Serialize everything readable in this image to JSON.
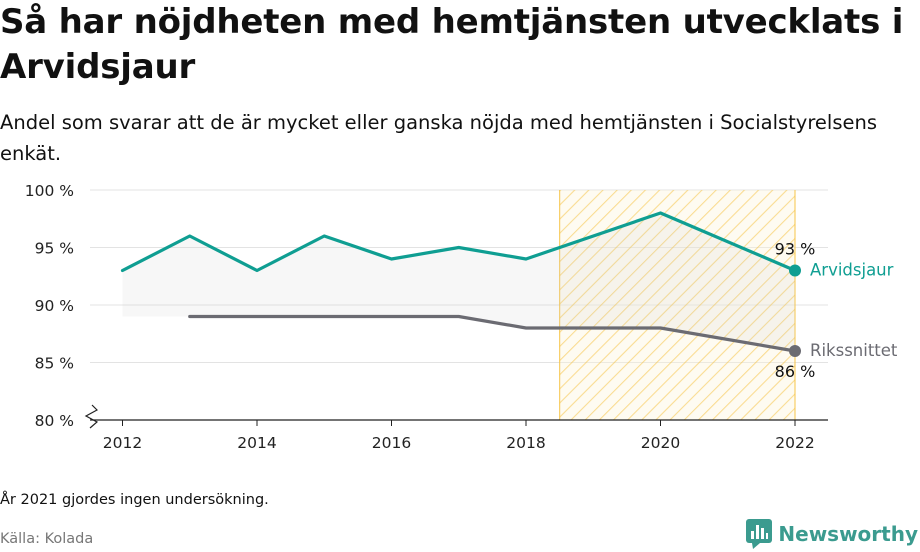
{
  "header": {
    "title": "Så har nöjdheten med hemtjänsten utvecklats i Arvidsjaur",
    "subtitle": "Andel som svarar att de är mycket eller ganska nöjda med hemtjänsten i Socialstyrelsens enkät."
  },
  "footer": {
    "note": "År 2021 gjordes ingen undersökning.",
    "source": "Källa: Kolada",
    "brand": "Newsworthy"
  },
  "colors": {
    "arvidsjaur": "#0f9e92",
    "riket": "#6b6b72",
    "hatch": "#f6c343",
    "brand": "#3b9b8f"
  },
  "chart_data": {
    "type": "line",
    "xlim": [
      2012,
      2022
    ],
    "ylim": [
      80,
      100
    ],
    "x_ticks": [
      {
        "value": 2012,
        "label": "2012"
      },
      {
        "value": 2014,
        "label": "2014"
      },
      {
        "value": 2016,
        "label": "2016"
      },
      {
        "value": 2018,
        "label": "2018"
      },
      {
        "value": 2020,
        "label": "2020"
      },
      {
        "value": 2022,
        "label": "2022"
      }
    ],
    "y_ticks": [
      {
        "value": 100,
        "label": "100 %"
      },
      {
        "value": 95,
        "label": "95 %"
      },
      {
        "value": 90,
        "label": "90 %"
      },
      {
        "value": 85,
        "label": "85 %"
      },
      {
        "value": 80,
        "label": "80 %"
      }
    ],
    "grid": true,
    "highlight_range": [
      2018.5,
      2022
    ],
    "series": [
      {
        "name": "Arvidsjaur",
        "end_label": "93 %",
        "color": "#0f9e92",
        "points": [
          {
            "x": 2012,
            "y": 93
          },
          {
            "x": 2013,
            "y": 96
          },
          {
            "x": 2014,
            "y": 93
          },
          {
            "x": 2015,
            "y": 96
          },
          {
            "x": 2016,
            "y": 94
          },
          {
            "x": 2017,
            "y": 95
          },
          {
            "x": 2018,
            "y": 94
          },
          {
            "x": 2020,
            "y": 98
          },
          {
            "x": 2022,
            "y": 93
          }
        ]
      },
      {
        "name": "Rikssnittet",
        "end_label": "86 %",
        "color": "#6b6b72",
        "points": [
          {
            "x": 2013,
            "y": 89
          },
          {
            "x": 2014,
            "y": 89
          },
          {
            "x": 2015,
            "y": 89
          },
          {
            "x": 2016,
            "y": 89
          },
          {
            "x": 2017,
            "y": 89
          },
          {
            "x": 2018,
            "y": 88
          },
          {
            "x": 2020,
            "y": 88
          },
          {
            "x": 2022,
            "y": 86
          }
        ]
      }
    ]
  }
}
